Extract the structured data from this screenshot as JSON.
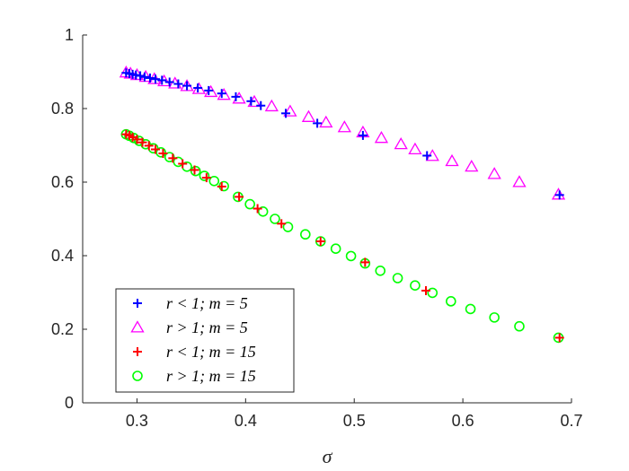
{
  "chart_data": {
    "type": "scatter",
    "title": "",
    "xlabel": "σ",
    "ylabel": "",
    "xlim": [
      0.25,
      0.7
    ],
    "ylim": [
      0,
      1
    ],
    "xticks": [
      "0.3",
      "0.4",
      "0.5",
      "0.6",
      "0.7"
    ],
    "yticks": [
      "0",
      "0.2",
      "0.4",
      "0.6",
      "0.8",
      "1"
    ],
    "grid": false,
    "legend_position": "bottom-left",
    "series": [
      {
        "name": "r < 1; m = 5",
        "marker": "plus",
        "color": "#0000ff",
        "points": [
          [
            0.29,
            0.897
          ],
          [
            0.293,
            0.895
          ],
          [
            0.296,
            0.893
          ],
          [
            0.299,
            0.891
          ],
          [
            0.303,
            0.889
          ],
          [
            0.307,
            0.886
          ],
          [
            0.312,
            0.883
          ],
          [
            0.317,
            0.88
          ],
          [
            0.323,
            0.877
          ],
          [
            0.33,
            0.872
          ],
          [
            0.338,
            0.867
          ],
          [
            0.346,
            0.862
          ],
          [
            0.356,
            0.856
          ],
          [
            0.366,
            0.849
          ],
          [
            0.378,
            0.841
          ],
          [
            0.391,
            0.832
          ],
          [
            0.405,
            0.82
          ],
          [
            0.414,
            0.808
          ],
          [
            0.437,
            0.787
          ],
          [
            0.466,
            0.76
          ],
          [
            0.508,
            0.727
          ],
          [
            0.567,
            0.672
          ],
          [
            0.689,
            0.565
          ]
        ]
      },
      {
        "name": "r > 1; m = 5",
        "marker": "triangle",
        "color": "#ff00ff",
        "points": [
          [
            0.29,
            0.898
          ],
          [
            0.294,
            0.895
          ],
          [
            0.3,
            0.891
          ],
          [
            0.308,
            0.886
          ],
          [
            0.316,
            0.88
          ],
          [
            0.325,
            0.874
          ],
          [
            0.335,
            0.868
          ],
          [
            0.346,
            0.861
          ],
          [
            0.357,
            0.853
          ],
          [
            0.368,
            0.845
          ],
          [
            0.38,
            0.837
          ],
          [
            0.394,
            0.827
          ],
          [
            0.408,
            0.818
          ],
          [
            0.424,
            0.806
          ],
          [
            0.441,
            0.792
          ],
          [
            0.458,
            0.777
          ],
          [
            0.474,
            0.762
          ],
          [
            0.491,
            0.749
          ],
          [
            0.508,
            0.735
          ],
          [
            0.525,
            0.72
          ],
          [
            0.543,
            0.703
          ],
          [
            0.556,
            0.689
          ],
          [
            0.572,
            0.671
          ],
          [
            0.59,
            0.657
          ],
          [
            0.608,
            0.642
          ],
          [
            0.629,
            0.622
          ],
          [
            0.652,
            0.6
          ],
          [
            0.688,
            0.566
          ]
        ]
      },
      {
        "name": "r < 1; m = 15",
        "marker": "plus",
        "color": "#ff0000",
        "points": [
          [
            0.29,
            0.73
          ],
          [
            0.293,
            0.727
          ],
          [
            0.296,
            0.722
          ],
          [
            0.3,
            0.716
          ],
          [
            0.305,
            0.708
          ],
          [
            0.311,
            0.699
          ],
          [
            0.317,
            0.689
          ],
          [
            0.324,
            0.678
          ],
          [
            0.333,
            0.665
          ],
          [
            0.342,
            0.65
          ],
          [
            0.353,
            0.633
          ],
          [
            0.364,
            0.612
          ],
          [
            0.378,
            0.588
          ],
          [
            0.394,
            0.56
          ],
          [
            0.411,
            0.528
          ],
          [
            0.433,
            0.487
          ],
          [
            0.469,
            0.439
          ],
          [
            0.51,
            0.382
          ],
          [
            0.566,
            0.305
          ],
          [
            0.689,
            0.177
          ]
        ]
      },
      {
        "name": "r > 1; m = 15",
        "marker": "circle",
        "color": "#00ff00",
        "points": [
          [
            0.29,
            0.73
          ],
          [
            0.293,
            0.726
          ],
          [
            0.297,
            0.72
          ],
          [
            0.302,
            0.712
          ],
          [
            0.308,
            0.703
          ],
          [
            0.315,
            0.692
          ],
          [
            0.322,
            0.681
          ],
          [
            0.33,
            0.668
          ],
          [
            0.338,
            0.655
          ],
          [
            0.346,
            0.642
          ],
          [
            0.354,
            0.63
          ],
          [
            0.362,
            0.617
          ],
          [
            0.371,
            0.603
          ],
          [
            0.38,
            0.589
          ],
          [
            0.393,
            0.56
          ],
          [
            0.404,
            0.54
          ],
          [
            0.416,
            0.52
          ],
          [
            0.427,
            0.5
          ],
          [
            0.439,
            0.478
          ],
          [
            0.455,
            0.458
          ],
          [
            0.469,
            0.439
          ],
          [
            0.483,
            0.419
          ],
          [
            0.497,
            0.399
          ],
          [
            0.51,
            0.379
          ],
          [
            0.524,
            0.359
          ],
          [
            0.54,
            0.339
          ],
          [
            0.556,
            0.319
          ],
          [
            0.572,
            0.299
          ],
          [
            0.589,
            0.276
          ],
          [
            0.607,
            0.255
          ],
          [
            0.629,
            0.232
          ],
          [
            0.652,
            0.208
          ],
          [
            0.688,
            0.177
          ]
        ]
      }
    ]
  }
}
